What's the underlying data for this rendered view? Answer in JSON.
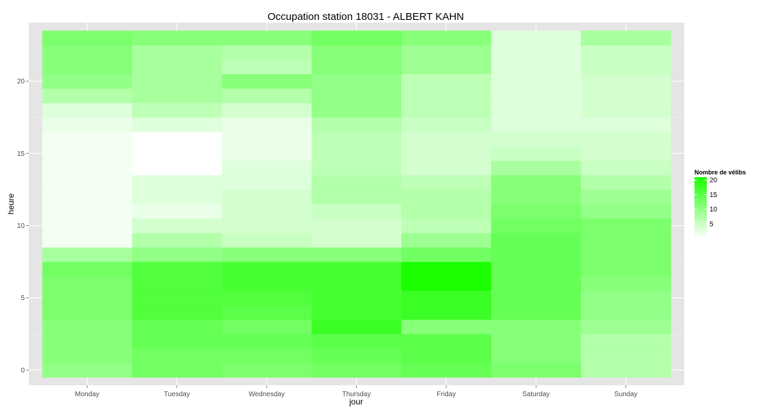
{
  "chart_data": {
    "type": "heatmap",
    "title": "Occupation station 18031 - ALBERT KAHN",
    "xlabel": "jour",
    "ylabel": "heure",
    "x_categories": [
      "Monday",
      "Tuesday",
      "Wednesday",
      "Thursday",
      "Friday",
      "Saturday",
      "Sunday"
    ],
    "y_hours": [
      0,
      1,
      2,
      3,
      4,
      5,
      6,
      7,
      8,
      9,
      10,
      11,
      12,
      13,
      14,
      15,
      16,
      17,
      18,
      19,
      20,
      21,
      22,
      23
    ],
    "y_ticks": [
      0,
      5,
      10,
      15,
      20
    ],
    "ylim": [
      -0.5,
      23.5
    ],
    "grid": true,
    "values": [
      [
        10,
        13,
        12,
        13,
        14,
        12,
        7
      ],
      [
        11,
        13,
        13,
        14,
        15,
        11,
        7
      ],
      [
        11,
        14,
        14,
        15,
        15,
        11,
        7
      ],
      [
        11,
        14,
        13,
        18,
        11,
        11,
        9
      ],
      [
        12,
        16,
        15,
        17,
        18,
        14,
        10
      ],
      [
        12,
        16,
        16,
        17,
        18,
        14,
        10
      ],
      [
        12,
        16,
        17,
        17,
        21,
        14,
        11
      ],
      [
        13,
        16,
        17,
        17,
        21,
        14,
        12
      ],
      [
        8,
        10,
        11,
        11,
        13,
        14,
        12
      ],
      [
        1,
        7,
        5,
        4,
        9,
        14,
        12
      ],
      [
        1,
        4,
        4,
        4,
        6,
        13,
        12
      ],
      [
        1,
        2,
        4,
        5,
        7,
        12,
        10
      ],
      [
        1,
        3,
        4,
        7,
        7,
        11,
        9
      ],
      [
        1,
        3,
        3,
        7,
        6,
        11,
        7
      ],
      [
        1,
        0,
        3,
        6,
        4,
        8,
        5
      ],
      [
        1,
        0,
        2,
        6,
        4,
        5,
        4
      ],
      [
        1,
        0,
        2,
        6,
        4,
        4,
        4
      ],
      [
        2,
        3,
        2,
        7,
        5,
        3,
        3
      ],
      [
        3,
        6,
        4,
        10,
        6,
        3,
        4
      ],
      [
        7,
        8,
        7,
        10,
        6,
        3,
        4
      ],
      [
        10,
        8,
        11,
        10,
        6,
        3,
        4
      ],
      [
        11,
        8,
        6,
        11,
        9,
        3,
        5
      ],
      [
        11,
        8,
        7,
        11,
        9,
        3,
        5
      ],
      [
        12,
        11,
        11,
        13,
        11,
        3,
        8
      ]
    ],
    "legend": {
      "title": "Nombre de vélibs",
      "ticks": [
        5,
        10,
        15,
        20
      ],
      "min": 0,
      "max": 21,
      "placement": "right"
    },
    "colors": {
      "low": "#ffffff",
      "high": "#1aff00",
      "panel": "#e5e5e5",
      "grid": "#ffffff"
    }
  }
}
